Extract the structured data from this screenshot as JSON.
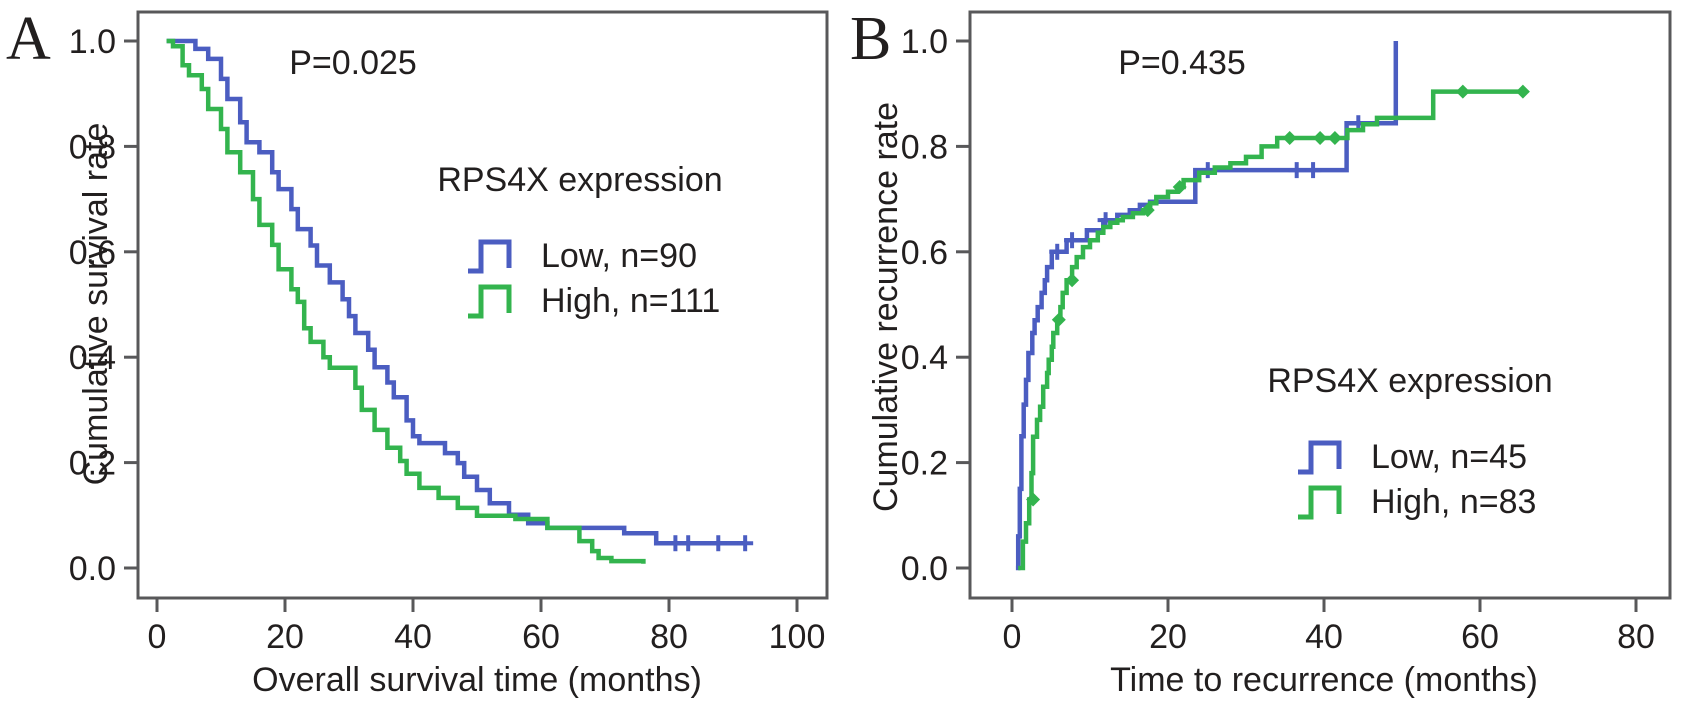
{
  "colors": {
    "low": "#4b5dc1",
    "high": "#33b44e",
    "axis": "#58585a",
    "text": "#221f1f"
  },
  "chart_data": [
    {
      "panel_label": "A",
      "type": "line",
      "subtype": "kaplan-meier-step",
      "title": "",
      "p_value": "P=0.025",
      "xlabel": "Overall survival time (months)",
      "ylabel": "Cumulative survival rate",
      "xlim": [
        0,
        100
      ],
      "ylim": [
        0.0,
        1.0
      ],
      "xticks": [
        0,
        20,
        40,
        60,
        80,
        100
      ],
      "ytick_labels": [
        "1.0",
        "0.8",
        "0.6",
        "0.4",
        "0.2",
        "0.0"
      ],
      "grid": false,
      "legend": {
        "title": "RPS4X expression",
        "position": "center-right"
      },
      "series": [
        {
          "name": "Low, n=90",
          "color": "#4b5dc1",
          "marker": "plus",
          "points": [
            [
              1.5,
              1.0
            ],
            [
              6,
              0.985
            ],
            [
              8,
              0.966
            ],
            [
              10,
              0.928
            ],
            [
              11,
              0.89
            ],
            [
              13,
              0.846
            ],
            [
              14,
              0.808
            ],
            [
              16,
              0.789
            ],
            [
              18,
              0.751
            ],
            [
              19,
              0.719
            ],
            [
              21,
              0.681
            ],
            [
              22,
              0.643
            ],
            [
              24,
              0.612
            ],
            [
              25,
              0.574
            ],
            [
              27,
              0.542
            ],
            [
              29,
              0.51
            ],
            [
              30,
              0.478
            ],
            [
              31,
              0.446
            ],
            [
              33,
              0.414
            ],
            [
              34,
              0.381
            ],
            [
              36,
              0.352
            ],
            [
              37,
              0.324
            ],
            [
              39,
              0.28
            ],
            [
              40,
              0.25
            ],
            [
              41,
              0.237
            ],
            [
              45,
              0.218
            ],
            [
              47,
              0.199
            ],
            [
              48,
              0.173
            ],
            [
              50,
              0.148
            ],
            [
              52,
              0.123
            ],
            [
              55,
              0.101
            ],
            [
              58,
              0.085
            ],
            [
              61,
              0.076
            ],
            [
              73,
              0.066
            ],
            [
              78,
              0.047
            ],
            [
              92,
              0.047
            ]
          ],
          "censor_marks": [
            [
              81,
              0.047
            ],
            [
              83,
              0.047
            ],
            [
              87.7,
              0.047
            ],
            [
              91.9,
              0.047
            ]
          ]
        },
        {
          "name": "High, n=111",
          "color": "#33b44e",
          "marker": "diamond",
          "points": [
            [
              1.5,
              1.0
            ],
            [
              2.5,
              0.99
            ],
            [
              4,
              0.954
            ],
            [
              5,
              0.935
            ],
            [
              7,
              0.909
            ],
            [
              8,
              0.871
            ],
            [
              10,
              0.833
            ],
            [
              11,
              0.789
            ],
            [
              13,
              0.751
            ],
            [
              15,
              0.7
            ],
            [
              16,
              0.651
            ],
            [
              18,
              0.613
            ],
            [
              19,
              0.567
            ],
            [
              21,
              0.529
            ],
            [
              22,
              0.505
            ],
            [
              23,
              0.455
            ],
            [
              24,
              0.429
            ],
            [
              26,
              0.4
            ],
            [
              27,
              0.38
            ],
            [
              31,
              0.342
            ],
            [
              32,
              0.3
            ],
            [
              34,
              0.262
            ],
            [
              36,
              0.228
            ],
            [
              38,
              0.203
            ],
            [
              39,
              0.179
            ],
            [
              41,
              0.152
            ],
            [
              44,
              0.133
            ],
            [
              47,
              0.114
            ],
            [
              50,
              0.099
            ],
            [
              56,
              0.093
            ],
            [
              61,
              0.076
            ],
            [
              66,
              0.051
            ],
            [
              68,
              0.032
            ],
            [
              69,
              0.019
            ],
            [
              71,
              0.013
            ],
            [
              76,
              0.008
            ]
          ],
          "censor_marks": []
        }
      ]
    },
    {
      "panel_label": "B",
      "type": "line",
      "subtype": "kaplan-meier-step",
      "title": "",
      "p_value": "P=0.435",
      "xlabel": "Time to recurrence (months)",
      "ylabel": "Cumulative recurrence rate",
      "xlim": [
        0,
        80
      ],
      "ylim": [
        0.0,
        1.0
      ],
      "xticks": [
        0,
        20,
        40,
        60,
        80
      ],
      "ytick_labels": [
        "1.0",
        "0.8",
        "0.6",
        "0.4",
        "0.2",
        "0.0"
      ],
      "grid": false,
      "legend": {
        "title": "RPS4X expression",
        "position": "lower-right"
      },
      "series": [
        {
          "name": "Low, n=45",
          "color": "#4b5dc1",
          "marker": "plus",
          "points": [
            [
              0.5,
              0.0
            ],
            [
              0.8,
              0.06
            ],
            [
              1.0,
              0.15
            ],
            [
              1.2,
              0.25
            ],
            [
              1.5,
              0.31
            ],
            [
              1.8,
              0.357
            ],
            [
              2.1,
              0.408
            ],
            [
              2.6,
              0.446
            ],
            [
              2.9,
              0.47
            ],
            [
              3.3,
              0.495
            ],
            [
              3.8,
              0.522
            ],
            [
              4.2,
              0.546
            ],
            [
              4.5,
              0.571
            ],
            [
              5.1,
              0.6
            ],
            [
              7,
              0.622
            ],
            [
              9.6,
              0.641
            ],
            [
              11.7,
              0.66
            ],
            [
              13.5,
              0.67
            ],
            [
              15.1,
              0.679
            ],
            [
              16.4,
              0.689
            ],
            [
              17.7,
              0.695
            ],
            [
              23.5,
              0.755
            ],
            [
              42.9,
              0.844
            ],
            [
              49.2,
              1.0
            ]
          ],
          "censor_marks": [
            [
              5.8,
              0.6
            ],
            [
              7.7,
              0.622
            ],
            [
              12,
              0.66
            ],
            [
              25.1,
              0.755
            ],
            [
              36.5,
              0.755
            ],
            [
              38.6,
              0.755
            ],
            [
              44.4,
              0.844
            ]
          ]
        },
        {
          "name": "High, n=83",
          "color": "#33b44e",
          "marker": "diamond",
          "points": [
            [
              0.8,
              0.0
            ],
            [
              1.4,
              0.05
            ],
            [
              1.8,
              0.085
            ],
            [
              2.2,
              0.13
            ],
            [
              2.5,
              0.18
            ],
            [
              2.7,
              0.249
            ],
            [
              3.2,
              0.281
            ],
            [
              3.6,
              0.306
            ],
            [
              4.0,
              0.344
            ],
            [
              4.5,
              0.37
            ],
            [
              4.7,
              0.395
            ],
            [
              5.1,
              0.42
            ],
            [
              5.3,
              0.446
            ],
            [
              5.8,
              0.471
            ],
            [
              6.2,
              0.495
            ],
            [
              6.5,
              0.522
            ],
            [
              7.0,
              0.546
            ],
            [
              7.7,
              0.571
            ],
            [
              8.3,
              0.59
            ],
            [
              9.1,
              0.609
            ],
            [
              10,
              0.622
            ],
            [
              11,
              0.636
            ],
            [
              11.7,
              0.647
            ],
            [
              12.6,
              0.655
            ],
            [
              13.5,
              0.66
            ],
            [
              14.2,
              0.666
            ],
            [
              15.5,
              0.673
            ],
            [
              16.8,
              0.679
            ],
            [
              17.7,
              0.692
            ],
            [
              18.5,
              0.704
            ],
            [
              20,
              0.714
            ],
            [
              21.2,
              0.723
            ],
            [
              22,
              0.736
            ],
            [
              24,
              0.75
            ],
            [
              26,
              0.76
            ],
            [
              28,
              0.768
            ],
            [
              30,
              0.78
            ],
            [
              32,
              0.8
            ],
            [
              34,
              0.816
            ],
            [
              43,
              0.831
            ],
            [
              45,
              0.842
            ],
            [
              46.8,
              0.854
            ],
            [
              54,
              0.904
            ],
            [
              65.5,
              0.904
            ]
          ],
          "censor_marks": [
            [
              2.7,
              0.13
            ],
            [
              6,
              0.471
            ],
            [
              7.7,
              0.546
            ],
            [
              17.4,
              0.679
            ],
            [
              21.5,
              0.723
            ],
            [
              35.6,
              0.816
            ],
            [
              39.5,
              0.816
            ],
            [
              41.4,
              0.816
            ],
            [
              57.8,
              0.904
            ],
            [
              65.5,
              0.904
            ]
          ]
        }
      ]
    }
  ]
}
